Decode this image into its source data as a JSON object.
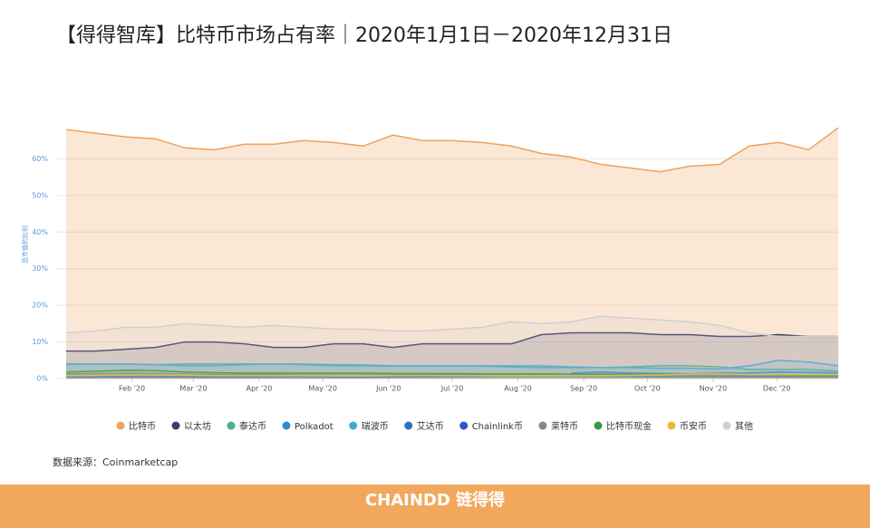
{
  "chart_data": {
    "type": "area",
    "title": "【得得智库】比特币市场占有率｜2020年1月1日－2020年12月31日",
    "y_label": "总市值的比例",
    "x": [
      0,
      14,
      28,
      42,
      56,
      70,
      84,
      98,
      112,
      126,
      140,
      154,
      168,
      182,
      196,
      210,
      224,
      238,
      252,
      266,
      280,
      294,
      308,
      322,
      336,
      350,
      364
    ],
    "xlim": [
      0,
      364
    ],
    "xticks": [
      {
        "value": 31,
        "label": "Feb '20"
      },
      {
        "value": 60,
        "label": "Mar '20"
      },
      {
        "value": 91,
        "label": "Apr '20"
      },
      {
        "value": 121,
        "label": "May '20"
      },
      {
        "value": 152,
        "label": "Jun '20"
      },
      {
        "value": 182,
        "label": "Jul '20"
      },
      {
        "value": 213,
        "label": "Aug '20"
      },
      {
        "value": 244,
        "label": "Sep '20"
      },
      {
        "value": 274,
        "label": "Oct '20"
      },
      {
        "value": 305,
        "label": "Nov '20"
      },
      {
        "value": 335,
        "label": "Dec '20"
      }
    ],
    "ylim": [
      0,
      70
    ],
    "yticks": [
      {
        "value": 0,
        "label": "0%"
      },
      {
        "value": 10,
        "label": "10%"
      },
      {
        "value": 20,
        "label": "20%"
      },
      {
        "value": 30,
        "label": "30%"
      },
      {
        "value": 40,
        "label": "40%"
      },
      {
        "value": 50,
        "label": "50%"
      },
      {
        "value": 60,
        "label": "60%"
      }
    ],
    "grid": true,
    "series": [
      {
        "name": "比特币",
        "color": "#f0a15b",
        "values": [
          68,
          67,
          66,
          65.5,
          63,
          62.5,
          64,
          64,
          65,
          64.5,
          63.5,
          66.5,
          65,
          65,
          64.5,
          63.5,
          61.5,
          60.5,
          58.5,
          57.5,
          56.5,
          58,
          58.5,
          63.5,
          64.5,
          62.5,
          68.5
        ]
      },
      {
        "name": "以太坊",
        "color": "#3b3e6e",
        "values": [
          7.5,
          7.5,
          8,
          8.5,
          10,
          10,
          9.5,
          8.5,
          8.5,
          9.5,
          9.5,
          8.5,
          9.5,
          9.5,
          9.5,
          9.5,
          12,
          12.5,
          12.5,
          12.5,
          12,
          12,
          11.5,
          11.5,
          12,
          11.5,
          11.5
        ]
      },
      {
        "name": "泰达币",
        "color": "#4cae8a",
        "values": [
          4,
          4,
          4,
          3.8,
          4,
          4,
          4,
          4,
          4,
          3.8,
          3.7,
          3.5,
          3.5,
          3.5,
          3.4,
          3.2,
          3,
          3,
          3,
          3.2,
          3.5,
          3.5,
          3.2,
          2.5,
          2.5,
          2.5,
          2
        ]
      },
      {
        "name": "Polkadot",
        "color": "#2a8ccf",
        "values": [
          null,
          null,
          null,
          null,
          null,
          null,
          null,
          null,
          null,
          null,
          null,
          null,
          null,
          null,
          null,
          null,
          null,
          1.5,
          1.8,
          1.5,
          1.4,
          1.3,
          1.5,
          1.5,
          1.8,
          1.7,
          1.5
        ]
      },
      {
        "name": "瑞波币",
        "color": "#40a9d9",
        "values": [
          3.8,
          4,
          4,
          3.8,
          3.5,
          3.5,
          3.8,
          4,
          3.8,
          3.5,
          3.5,
          3.4,
          3.4,
          3.5,
          3.5,
          3.5,
          3.5,
          3.2,
          3,
          3,
          2.8,
          2.8,
          2.6,
          3.5,
          5,
          4.5,
          3.5
        ]
      },
      {
        "name": "艾达币",
        "color": "#2f6fbd",
        "values": [
          0.4,
          0.5,
          0.6,
          0.6,
          0.5,
          0.5,
          0.5,
          0.6,
          0.7,
          0.8,
          0.9,
          1,
          1,
          1.1,
          1.1,
          1.1,
          1,
          1,
          1,
          1,
          0.9,
          0.9,
          0.8,
          0.8,
          0.9,
          0.9,
          1
        ]
      },
      {
        "name": "Chainlink币",
        "color": "#2f55c8",
        "values": [
          0.1,
          0.2,
          0.2,
          0.2,
          0.2,
          0.2,
          0.2,
          0.2,
          0.2,
          0.3,
          0.3,
          0.4,
          0.5,
          0.6,
          0.7,
          0.8,
          0.9,
          0.9,
          0.8,
          0.7,
          0.6,
          0.6,
          0.6,
          0.6,
          0.6,
          0.6,
          0.6
        ]
      },
      {
        "name": "莱特币",
        "color": "#888888",
        "values": [
          1.3,
          1.3,
          1.4,
          1.3,
          1.2,
          1.1,
          1.1,
          1.1,
          1,
          1,
          1,
          1,
          1,
          1,
          1,
          1,
          1,
          0.9,
          0.8,
          0.8,
          0.8,
          0.8,
          0.8,
          0.9,
          0.9,
          0.8,
          0.8
        ]
      },
      {
        "name": "比特币现金",
        "color": "#3a9a3a",
        "values": [
          1.8,
          2,
          2.3,
          2.2,
          1.8,
          1.6,
          1.5,
          1.5,
          1.5,
          1.5,
          1.5,
          1.4,
          1.4,
          1.4,
          1.3,
          1.3,
          1.3,
          1.2,
          1.2,
          1.2,
          1.2,
          1.2,
          1.2,
          1.1,
          1,
          0.8,
          0.7
        ]
      },
      {
        "name": "币安币",
        "color": "#e8b73a",
        "values": [
          0.8,
          0.9,
          1,
          1,
          1,
          0.8,
          0.8,
          0.8,
          0.8,
          0.8,
          0.8,
          0.8,
          0.8,
          0.8,
          0.8,
          0.8,
          0.8,
          0.8,
          0.8,
          0.9,
          1,
          1.2,
          1.3,
          1.1,
          1.1,
          1.1,
          1.1
        ]
      },
      {
        "name": "其他",
        "color": "#cfcfcf",
        "values": [
          12.5,
          13,
          14,
          14,
          15,
          14.5,
          14,
          14.5,
          14,
          13.5,
          13.5,
          13,
          13,
          13.5,
          14,
          15.5,
          15,
          15.5,
          17,
          16.5,
          16,
          15.5,
          14.5,
          12.5,
          11.5,
          11.5,
          11.5
        ]
      }
    ]
  },
  "source": "数据来源：Coinmarketcap",
  "footer": "CHAINDD 链得得"
}
